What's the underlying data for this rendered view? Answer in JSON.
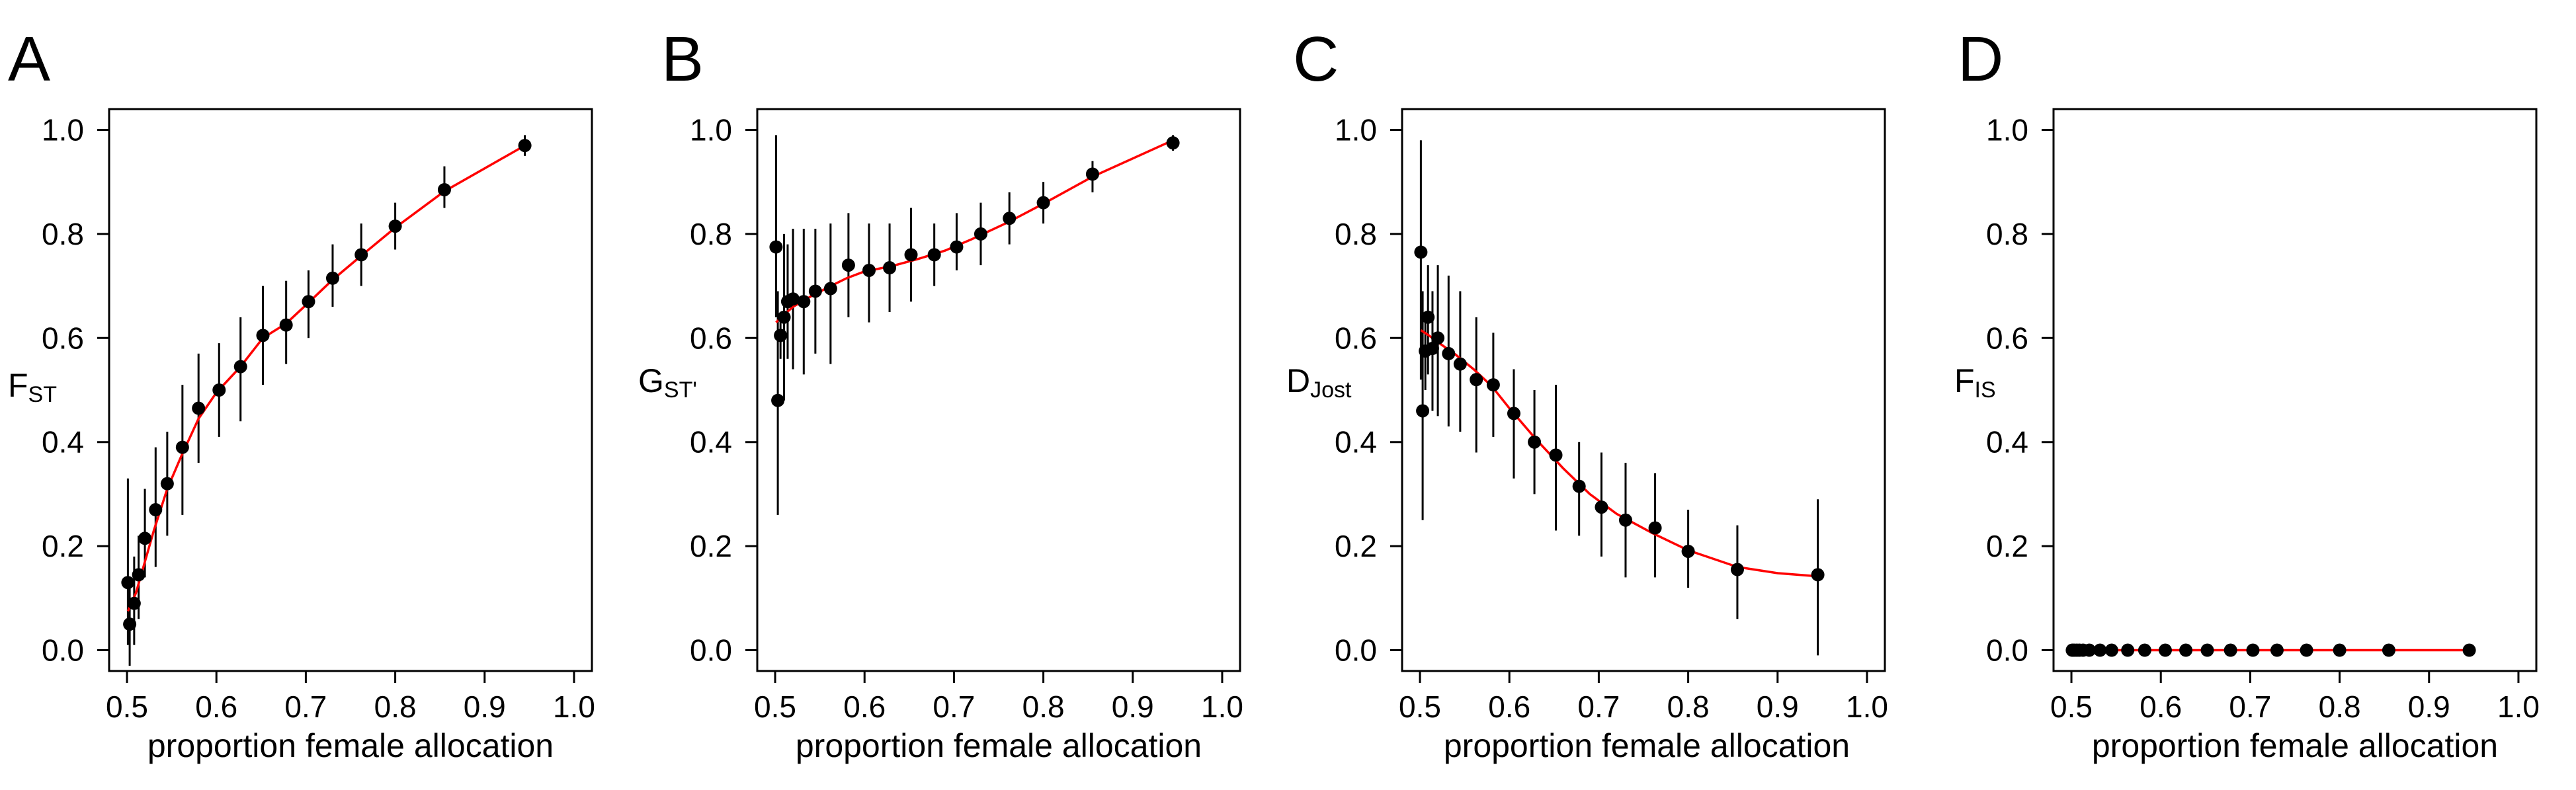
{
  "chart_data": [
    {
      "type": "scatter",
      "panel_label": "A",
      "ylabel": {
        "main": "F",
        "sub": "ST"
      },
      "xlabel": "proportion female allocation",
      "xlim": [
        0.5,
        1.0
      ],
      "ylim": [
        0.0,
        1.0
      ],
      "xticks": [
        "0.5",
        "0.6",
        "0.7",
        "0.8",
        "0.9",
        "1.0"
      ],
      "yticks": [
        "0.0",
        "0.2",
        "0.4",
        "0.6",
        "0.8",
        "1.0"
      ],
      "grid": false,
      "line_color": "#ff0000",
      "point_color": "#000000",
      "points": [
        {
          "x": 0.501,
          "y": 0.13,
          "lo": 0.01,
          "hi": 0.33
        },
        {
          "x": 0.503,
          "y": 0.05,
          "lo": -0.03,
          "hi": 0.12
        },
        {
          "x": 0.508,
          "y": 0.09,
          "lo": 0.01,
          "hi": 0.18
        },
        {
          "x": 0.513,
          "y": 0.145,
          "lo": 0.06,
          "hi": 0.22
        },
        {
          "x": 0.52,
          "y": 0.215,
          "lo": 0.14,
          "hi": 0.31
        },
        {
          "x": 0.532,
          "y": 0.27,
          "lo": 0.16,
          "hi": 0.39
        },
        {
          "x": 0.545,
          "y": 0.32,
          "lo": 0.22,
          "hi": 0.42
        },
        {
          "x": 0.562,
          "y": 0.39,
          "lo": 0.26,
          "hi": 0.51
        },
        {
          "x": 0.58,
          "y": 0.465,
          "lo": 0.36,
          "hi": 0.57
        },
        {
          "x": 0.603,
          "y": 0.5,
          "lo": 0.41,
          "hi": 0.59
        },
        {
          "x": 0.627,
          "y": 0.545,
          "lo": 0.44,
          "hi": 0.64
        },
        {
          "x": 0.652,
          "y": 0.605,
          "lo": 0.51,
          "hi": 0.7
        },
        {
          "x": 0.678,
          "y": 0.625,
          "lo": 0.55,
          "hi": 0.71
        },
        {
          "x": 0.703,
          "y": 0.67,
          "lo": 0.6,
          "hi": 0.73
        },
        {
          "x": 0.73,
          "y": 0.715,
          "lo": 0.66,
          "hi": 0.78
        },
        {
          "x": 0.762,
          "y": 0.76,
          "lo": 0.7,
          "hi": 0.82
        },
        {
          "x": 0.8,
          "y": 0.815,
          "lo": 0.77,
          "hi": 0.86
        },
        {
          "x": 0.855,
          "y": 0.885,
          "lo": 0.85,
          "hi": 0.93
        },
        {
          "x": 0.945,
          "y": 0.97,
          "lo": 0.95,
          "hi": 0.99
        }
      ],
      "fit": [
        [
          0.501,
          0.075
        ],
        [
          0.51,
          0.11
        ],
        [
          0.52,
          0.17
        ],
        [
          0.53,
          0.23
        ],
        [
          0.545,
          0.31
        ],
        [
          0.56,
          0.37
        ],
        [
          0.58,
          0.445
        ],
        [
          0.6,
          0.495
        ],
        [
          0.627,
          0.545
        ],
        [
          0.652,
          0.6
        ],
        [
          0.678,
          0.628
        ],
        [
          0.703,
          0.668
        ],
        [
          0.73,
          0.712
        ],
        [
          0.762,
          0.758
        ],
        [
          0.8,
          0.812
        ],
        [
          0.855,
          0.882
        ],
        [
          0.945,
          0.97
        ]
      ]
    },
    {
      "type": "scatter",
      "panel_label": "B",
      "ylabel": {
        "main": "G",
        "sub": "ST'"
      },
      "xlabel": "proportion female allocation",
      "xlim": [
        0.5,
        1.0
      ],
      "ylim": [
        0.0,
        1.0
      ],
      "xticks": [
        "0.5",
        "0.6",
        "0.7",
        "0.8",
        "0.9",
        "1.0"
      ],
      "yticks": [
        "0.0",
        "0.2",
        "0.4",
        "0.6",
        "0.8",
        "1.0"
      ],
      "grid": false,
      "line_color": "#ff0000",
      "point_color": "#000000",
      "points": [
        {
          "x": 0.501,
          "y": 0.775,
          "lo": 0.64,
          "hi": 0.99
        },
        {
          "x": 0.503,
          "y": 0.48,
          "lo": 0.26,
          "hi": 0.69
        },
        {
          "x": 0.506,
          "y": 0.605,
          "lo": 0.56,
          "hi": 0.64
        },
        {
          "x": 0.51,
          "y": 0.64,
          "lo": 0.48,
          "hi": 0.8
        },
        {
          "x": 0.514,
          "y": 0.67,
          "lo": 0.56,
          "hi": 0.78
        },
        {
          "x": 0.52,
          "y": 0.675,
          "lo": 0.54,
          "hi": 0.81
        },
        {
          "x": 0.532,
          "y": 0.67,
          "lo": 0.53,
          "hi": 0.81
        },
        {
          "x": 0.545,
          "y": 0.69,
          "lo": 0.57,
          "hi": 0.81
        },
        {
          "x": 0.562,
          "y": 0.695,
          "lo": 0.55,
          "hi": 0.82
        },
        {
          "x": 0.582,
          "y": 0.74,
          "lo": 0.64,
          "hi": 0.84
        },
        {
          "x": 0.605,
          "y": 0.73,
          "lo": 0.63,
          "hi": 0.82
        },
        {
          "x": 0.628,
          "y": 0.735,
          "lo": 0.65,
          "hi": 0.82
        },
        {
          "x": 0.652,
          "y": 0.76,
          "lo": 0.67,
          "hi": 0.85
        },
        {
          "x": 0.678,
          "y": 0.76,
          "lo": 0.7,
          "hi": 0.82
        },
        {
          "x": 0.703,
          "y": 0.775,
          "lo": 0.73,
          "hi": 0.84
        },
        {
          "x": 0.73,
          "y": 0.8,
          "lo": 0.74,
          "hi": 0.86
        },
        {
          "x": 0.762,
          "y": 0.83,
          "lo": 0.78,
          "hi": 0.88
        },
        {
          "x": 0.8,
          "y": 0.86,
          "lo": 0.82,
          "hi": 0.9
        },
        {
          "x": 0.855,
          "y": 0.915,
          "lo": 0.88,
          "hi": 0.94
        },
        {
          "x": 0.945,
          "y": 0.975,
          "lo": 0.96,
          "hi": 0.99
        }
      ],
      "fit": [
        [
          0.501,
          0.63
        ],
        [
          0.51,
          0.645
        ],
        [
          0.52,
          0.66
        ],
        [
          0.54,
          0.68
        ],
        [
          0.56,
          0.698
        ],
        [
          0.58,
          0.715
        ],
        [
          0.6,
          0.728
        ],
        [
          0.63,
          0.738
        ],
        [
          0.66,
          0.752
        ],
        [
          0.69,
          0.768
        ],
        [
          0.72,
          0.79
        ],
        [
          0.76,
          0.822
        ],
        [
          0.8,
          0.858
        ],
        [
          0.855,
          0.91
        ],
        [
          0.945,
          0.98
        ]
      ]
    },
    {
      "type": "scatter",
      "panel_label": "C",
      "ylabel": {
        "main": "D",
        "sub": "Jost"
      },
      "xlabel": "proportion female allocation",
      "xlim": [
        0.5,
        1.0
      ],
      "ylim": [
        0.0,
        1.0
      ],
      "xticks": [
        "0.5",
        "0.6",
        "0.7",
        "0.8",
        "0.9",
        "1.0"
      ],
      "yticks": [
        "0.0",
        "0.2",
        "0.4",
        "0.6",
        "0.8",
        "1.0"
      ],
      "grid": false,
      "line_color": "#ff0000",
      "point_color": "#000000",
      "points": [
        {
          "x": 0.501,
          "y": 0.765,
          "lo": 0.52,
          "hi": 0.98
        },
        {
          "x": 0.503,
          "y": 0.46,
          "lo": 0.25,
          "hi": 0.69
        },
        {
          "x": 0.506,
          "y": 0.575,
          "lo": 0.5,
          "hi": 0.65
        },
        {
          "x": 0.509,
          "y": 0.64,
          "lo": 0.53,
          "hi": 0.74
        },
        {
          "x": 0.514,
          "y": 0.58,
          "lo": 0.46,
          "hi": 0.69
        },
        {
          "x": 0.52,
          "y": 0.6,
          "lo": 0.45,
          "hi": 0.74
        },
        {
          "x": 0.532,
          "y": 0.57,
          "lo": 0.43,
          "hi": 0.72
        },
        {
          "x": 0.545,
          "y": 0.55,
          "lo": 0.42,
          "hi": 0.69
        },
        {
          "x": 0.563,
          "y": 0.52,
          "lo": 0.38,
          "hi": 0.64
        },
        {
          "x": 0.582,
          "y": 0.51,
          "lo": 0.41,
          "hi": 0.61
        },
        {
          "x": 0.605,
          "y": 0.455,
          "lo": 0.33,
          "hi": 0.54
        },
        {
          "x": 0.628,
          "y": 0.4,
          "lo": 0.3,
          "hi": 0.5
        },
        {
          "x": 0.652,
          "y": 0.375,
          "lo": 0.23,
          "hi": 0.51
        },
        {
          "x": 0.678,
          "y": 0.315,
          "lo": 0.22,
          "hi": 0.4
        },
        {
          "x": 0.703,
          "y": 0.275,
          "lo": 0.18,
          "hi": 0.38
        },
        {
          "x": 0.73,
          "y": 0.25,
          "lo": 0.14,
          "hi": 0.36
        },
        {
          "x": 0.763,
          "y": 0.235,
          "lo": 0.14,
          "hi": 0.34
        },
        {
          "x": 0.8,
          "y": 0.19,
          "lo": 0.12,
          "hi": 0.27
        },
        {
          "x": 0.855,
          "y": 0.155,
          "lo": 0.06,
          "hi": 0.24
        },
        {
          "x": 0.945,
          "y": 0.145,
          "lo": -0.01,
          "hi": 0.29
        }
      ],
      "fit": [
        [
          0.501,
          0.615
        ],
        [
          0.51,
          0.605
        ],
        [
          0.52,
          0.592
        ],
        [
          0.54,
          0.568
        ],
        [
          0.56,
          0.54
        ],
        [
          0.58,
          0.508
        ],
        [
          0.6,
          0.465
        ],
        [
          0.63,
          0.405
        ],
        [
          0.66,
          0.35
        ],
        [
          0.69,
          0.3
        ],
        [
          0.72,
          0.262
        ],
        [
          0.76,
          0.225
        ],
        [
          0.8,
          0.192
        ],
        [
          0.855,
          0.16
        ],
        [
          0.9,
          0.148
        ],
        [
          0.945,
          0.142
        ]
      ]
    },
    {
      "type": "scatter",
      "panel_label": "D",
      "ylabel": {
        "main": "F",
        "sub": "IS"
      },
      "xlabel": "proportion female allocation",
      "xlim": [
        0.5,
        1.0
      ],
      "ylim": [
        0.0,
        1.0
      ],
      "xticks": [
        "0.5",
        "0.6",
        "0.7",
        "0.8",
        "0.9",
        "1.0"
      ],
      "yticks": [
        "0.0",
        "0.2",
        "0.4",
        "0.6",
        "0.8",
        "1.0"
      ],
      "grid": false,
      "line_color": "#ff0000",
      "point_color": "#000000",
      "points": [
        {
          "x": 0.501,
          "y": 0.0
        },
        {
          "x": 0.503,
          "y": 0.0
        },
        {
          "x": 0.506,
          "y": 0.0
        },
        {
          "x": 0.509,
          "y": 0.0
        },
        {
          "x": 0.513,
          "y": 0.0
        },
        {
          "x": 0.52,
          "y": 0.0
        },
        {
          "x": 0.532,
          "y": 0.0
        },
        {
          "x": 0.545,
          "y": 0.0
        },
        {
          "x": 0.563,
          "y": 0.0
        },
        {
          "x": 0.582,
          "y": 0.0
        },
        {
          "x": 0.605,
          "y": 0.0
        },
        {
          "x": 0.628,
          "y": 0.0
        },
        {
          "x": 0.652,
          "y": 0.0
        },
        {
          "x": 0.678,
          "y": 0.0
        },
        {
          "x": 0.703,
          "y": 0.0
        },
        {
          "x": 0.73,
          "y": 0.0
        },
        {
          "x": 0.763,
          "y": 0.0
        },
        {
          "x": 0.8,
          "y": 0.0
        },
        {
          "x": 0.855,
          "y": 0.0
        },
        {
          "x": 0.945,
          "y": 0.0
        }
      ],
      "fit": [
        [
          0.501,
          0.0
        ],
        [
          0.945,
          0.0
        ]
      ]
    }
  ]
}
